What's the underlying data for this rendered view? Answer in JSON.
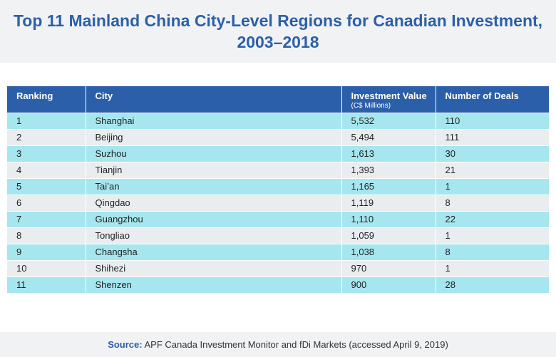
{
  "chart_data": {
    "type": "table",
    "title_line1": "Top 11 Mainland China City-Level Regions for Canadian Investment,",
    "title_line2": "2003–2018",
    "columns": [
      "Ranking",
      "City",
      "Investment Value",
      "Number of Deals"
    ],
    "column_subtitles": [
      "",
      "",
      "(C$ Millions)",
      ""
    ],
    "rows": [
      [
        "1",
        "Shanghai",
        "5,532",
        "110"
      ],
      [
        "2",
        "Beijing",
        "5,494",
        "111"
      ],
      [
        "3",
        "Suzhou",
        "1,613",
        "30"
      ],
      [
        "4",
        "Tianjin",
        "1,393",
        "21"
      ],
      [
        "5",
        "Tai’an",
        "1,165",
        "1"
      ],
      [
        "6",
        "Qingdao",
        "1,119",
        "8"
      ],
      [
        "7",
        "Guangzhou",
        "1,110",
        "22"
      ],
      [
        "8",
        "Tongliao",
        "1,059",
        "1"
      ],
      [
        "9",
        "Changsha",
        "1,038",
        "8"
      ],
      [
        "10",
        "Shihezi",
        "970",
        "1"
      ],
      [
        "11",
        "Shenzen",
        "900",
        "28"
      ]
    ],
    "source_label": "Source:",
    "source_text": " APF Canada Investment Monitor and fDi Markets (accessed April 9, 2019)"
  },
  "colors": {
    "header": "#2c5fa9",
    "row_odd": "#a6e6ee",
    "row_even": "#e9edf0",
    "band": "#f1f2f4"
  }
}
